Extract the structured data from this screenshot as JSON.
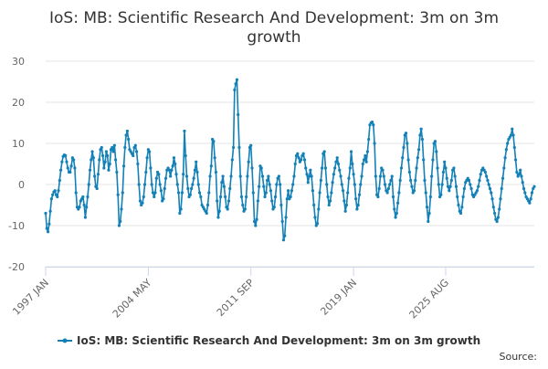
{
  "chart_data": {
    "type": "line",
    "title_lines": [
      "IoS: MB: Scientific Research And Development: 3m on 3m",
      "growth"
    ],
    "x_tick_labels": [
      "1997 JAN",
      "2004 MAY",
      "2011 SEP",
      "2019 JAN",
      "2025 AUG"
    ],
    "y_ticks": [
      -20,
      -10,
      0,
      10,
      20,
      30
    ],
    "ylim": [
      -20,
      30
    ],
    "grid": true,
    "legend_position": "bottom-center",
    "credits": "Source:",
    "series": [
      {
        "name": "IoS: MB: Scientific Research And Development: 3m on 3m growth",
        "color": "#1380b7",
        "x_start": "1997 JAN",
        "frequency": "monthly",
        "values": [
          -7.0,
          -10.7,
          -11.5,
          -9.6,
          -6.5,
          -3.5,
          -2.5,
          -1.8,
          -1.5,
          -2.5,
          -3.0,
          -1.5,
          1.0,
          3.5,
          5.5,
          6.8,
          7.2,
          7.0,
          5.5,
          4.0,
          3.0,
          3.0,
          4.5,
          6.5,
          6.0,
          4.0,
          -2.0,
          -5.5,
          -6.0,
          -5.5,
          -4.0,
          -3.5,
          -3.0,
          -5.0,
          -8.0,
          -5.5,
          -3.0,
          0.0,
          3.5,
          6.0,
          8.0,
          6.5,
          2.0,
          -0.5,
          -1.0,
          2.5,
          6.0,
          8.5,
          9.0,
          7.0,
          4.0,
          5.5,
          8.0,
          7.0,
          3.5,
          5.0,
          8.5,
          9.0,
          8.0,
          9.5,
          6.0,
          3.0,
          -2.5,
          -10.0,
          -9.0,
          -6.0,
          -2.0,
          4.5,
          9.0,
          12.0,
          13.0,
          11.0,
          8.5,
          8.0,
          7.5,
          7.0,
          9.0,
          9.5,
          8.0,
          5.0,
          0.0,
          -4.0,
          -5.0,
          -4.5,
          -3.0,
          0.0,
          3.0,
          6.5,
          8.5,
          8.0,
          4.0,
          0.0,
          -2.0,
          -3.0,
          -2.0,
          1.5,
          3.0,
          2.5,
          0.0,
          -1.5,
          -4.0,
          -3.5,
          -1.0,
          1.5,
          3.5,
          4.0,
          3.5,
          2.0,
          3.5,
          4.5,
          6.5,
          5.0,
          2.5,
          0.0,
          -2.0,
          -7.0,
          -6.0,
          -2.0,
          2.5,
          13.0,
          7.0,
          2.0,
          -1.0,
          -3.0,
          -2.5,
          -1.0,
          0.0,
          1.5,
          3.5,
          5.5,
          3.0,
          0.0,
          -2.0,
          -3.0,
          -5.0,
          -5.5,
          -6.0,
          -6.5,
          -7.0,
          -5.0,
          -2.0,
          2.0,
          4.5,
          11.0,
          10.5,
          6.5,
          3.0,
          -4.0,
          -8.0,
          -6.5,
          -3.0,
          0.5,
          2.0,
          -0.5,
          -3.0,
          -5.5,
          -6.0,
          -4.0,
          -1.0,
          2.0,
          6.0,
          9.0,
          23.0,
          24.5,
          25.5,
          17.0,
          9.0,
          2.0,
          -3.0,
          -5.0,
          -6.5,
          -6.0,
          -3.0,
          2.0,
          5.5,
          9.0,
          9.5,
          4.0,
          -2.0,
          -9.0,
          -10.0,
          -8.5,
          -4.0,
          -0.5,
          4.5,
          4.0,
          2.0,
          -0.5,
          -3.0,
          -2.0,
          1.0,
          2.0,
          0.0,
          -1.5,
          -4.0,
          -6.0,
          -5.5,
          -3.0,
          0.0,
          1.5,
          2.0,
          0.0,
          -5.0,
          -9.0,
          -13.5,
          -12.5,
          -8.0,
          -3.5,
          -1.5,
          -3.5,
          -3.0,
          -1.5,
          0.0,
          2.0,
          5.0,
          7.0,
          7.5,
          6.5,
          5.5,
          6.0,
          7.0,
          7.5,
          6.0,
          4.0,
          2.5,
          0.5,
          2.0,
          3.5,
          2.0,
          -1.5,
          -5.0,
          -8.0,
          -10.0,
          -9.5,
          -6.0,
          -2.0,
          1.0,
          4.0,
          7.5,
          8.0,
          4.0,
          0.0,
          -3.0,
          -5.0,
          -4.0,
          -2.0,
          0.5,
          2.5,
          4.0,
          5.5,
          6.5,
          5.0,
          3.5,
          2.0,
          0.0,
          -1.5,
          -4.0,
          -6.5,
          -5.0,
          -2.0,
          1.5,
          4.0,
          8.0,
          5.0,
          2.5,
          0.0,
          -3.5,
          -6.0,
          -5.0,
          -2.5,
          0.0,
          2.0,
          5.0,
          6.0,
          7.0,
          5.5,
          8.0,
          11.0,
          14.5,
          15.0,
          15.2,
          14.5,
          10.0,
          2.0,
          -2.5,
          -3.0,
          -1.0,
          2.0,
          4.0,
          3.5,
          2.0,
          0.0,
          -1.5,
          -2.0,
          -1.0,
          0.0,
          1.0,
          2.0,
          -3.0,
          -6.0,
          -8.0,
          -7.0,
          -4.5,
          -2.0,
          1.0,
          4.0,
          6.5,
          9.0,
          12.0,
          12.5,
          10.0,
          6.0,
          3.0,
          1.0,
          -0.5,
          -2.0,
          -1.5,
          1.0,
          4.0,
          6.5,
          8.5,
          12.0,
          13.5,
          11.0,
          6.0,
          1.0,
          -2.0,
          -5.5,
          -9.0,
          -7.0,
          -3.0,
          2.0,
          6.0,
          10.0,
          10.5,
          8.0,
          4.0,
          0.0,
          -3.0,
          -2.5,
          0.0,
          3.0,
          5.5,
          4.0,
          1.5,
          -0.5,
          -1.5,
          -0.5,
          1.0,
          3.5,
          4.0,
          2.0,
          -0.5,
          -3.0,
          -5.0,
          -6.5,
          -7.0,
          -5.5,
          -3.0,
          -1.0,
          0.5,
          1.0,
          1.5,
          1.0,
          0.0,
          -1.0,
          -2.5,
          -3.0,
          -2.5,
          -2.0,
          -1.5,
          -0.5,
          1.0,
          2.5,
          3.5,
          4.0,
          3.5,
          3.0,
          2.0,
          1.0,
          0.0,
          -1.0,
          -2.0,
          -3.5,
          -5.5,
          -7.0,
          -8.5,
          -9.0,
          -8.0,
          -6.0,
          -3.5,
          -1.0,
          1.5,
          4.0,
          6.5,
          8.5,
          10.0,
          11.0,
          11.5,
          12.0,
          13.5,
          12.0,
          9.0,
          6.0,
          3.0,
          2.0,
          2.5,
          3.5,
          2.0,
          0.5,
          -1.0,
          -2.0,
          -3.0,
          -3.5,
          -4.0,
          -4.5,
          -3.5,
          -2.0,
          -1.0,
          -0.5
        ]
      }
    ]
  }
}
